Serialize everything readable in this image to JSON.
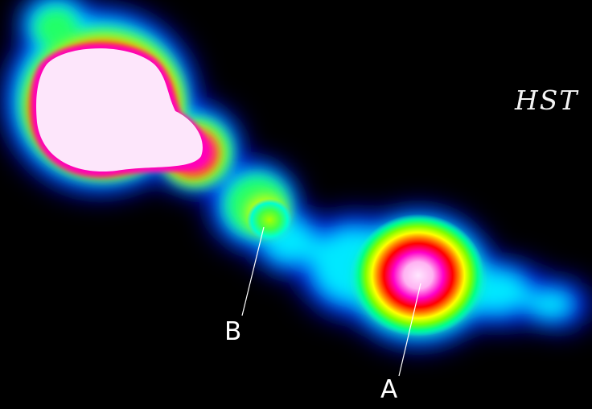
{
  "instrument_label": "HST",
  "knots": [
    {
      "id": "A",
      "label": "A"
    },
    {
      "id": "B",
      "label": "B"
    }
  ],
  "colormap": [
    "#0000ff",
    "#00e5ff",
    "#00ff66",
    "#ffff00",
    "#ff0000",
    "#ff00c8",
    "#ffe6ff"
  ],
  "background_color": "#000000"
}
